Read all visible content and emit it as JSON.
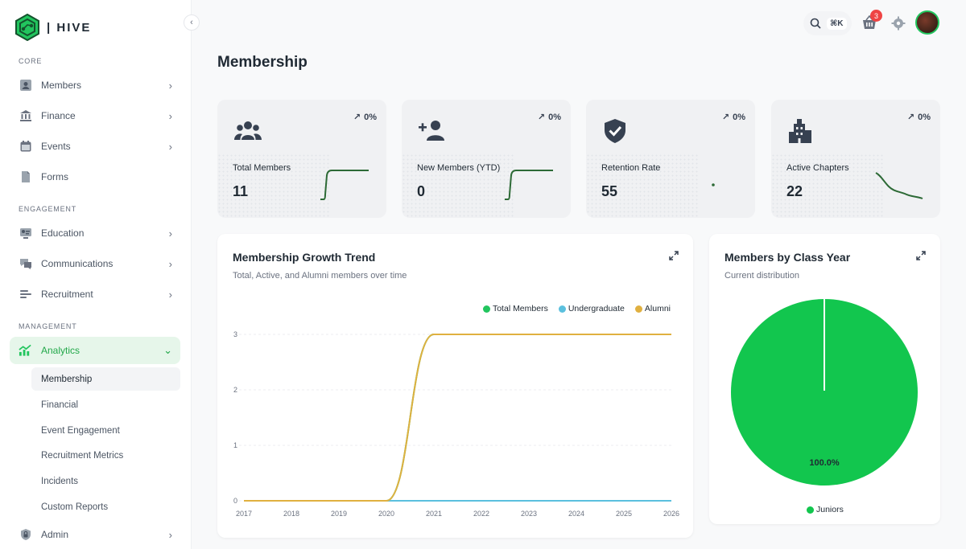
{
  "app": {
    "brand": "| HIVE",
    "accent": "#22c55e"
  },
  "sidebar": {
    "sections": [
      {
        "label": "CORE"
      },
      {
        "label": "ENGAGEMENT"
      },
      {
        "label": "MANAGEMENT"
      }
    ],
    "items": [
      {
        "label": "Members",
        "icon": "member-icon"
      },
      {
        "label": "Finance",
        "icon": "bank-icon"
      },
      {
        "label": "Events",
        "icon": "calendar-icon"
      },
      {
        "label": "Forms",
        "icon": "document-icon"
      },
      {
        "label": "Education",
        "icon": "education-icon"
      },
      {
        "label": "Communications",
        "icon": "chat-icon"
      },
      {
        "label": "Recruitment",
        "icon": "recruitment-icon"
      },
      {
        "label": "Analytics",
        "icon": "analytics-icon"
      },
      {
        "label": "Admin",
        "icon": "lock-icon"
      }
    ],
    "analytics_sub": [
      "Membership",
      "Financial",
      "Event Engagement",
      "Recruitment Metrics",
      "Incidents",
      "Custom Reports"
    ]
  },
  "topbar": {
    "shortcut": "⌘K",
    "cart_badge": "3"
  },
  "page": {
    "title": "Membership"
  },
  "stats": [
    {
      "label": "Total Members",
      "value": "11",
      "trend": "0%",
      "icon": "users-icon",
      "sparkline": "step-up"
    },
    {
      "label": "New Members (YTD)",
      "value": "0",
      "trend": "0%",
      "icon": "add-user-icon",
      "sparkline": "step-up"
    },
    {
      "label": "Retention Rate",
      "value": "55",
      "trend": "0%",
      "icon": "shield-check-icon",
      "sparkline": "point"
    },
    {
      "label": "Active Chapters",
      "value": "22",
      "trend": "0%",
      "icon": "building-icon",
      "sparkline": "decline"
    }
  ],
  "growth": {
    "title": "Membership Growth Trend",
    "subtitle": "Total, Active, and Alumni members over time"
  },
  "classyear": {
    "title": "Members by Class Year",
    "subtitle": "Current distribution"
  },
  "chart_data": [
    {
      "type": "line",
      "x": [
        "2017",
        "2018",
        "2019",
        "2020",
        "2021",
        "2022",
        "2023",
        "2024",
        "2025",
        "2026"
      ],
      "ylim": [
        0,
        3
      ],
      "yticks": [
        "0",
        "1",
        "2",
        "3"
      ],
      "series": [
        {
          "name": "Total Members",
          "color": "#22c55e",
          "values": [
            0,
            0,
            0,
            0,
            3,
            3,
            3,
            3,
            3,
            3
          ]
        },
        {
          "name": "Undergraduate",
          "color": "#5bc0de",
          "values": [
            0,
            0,
            0,
            0,
            0,
            0,
            0,
            0,
            0,
            0
          ]
        },
        {
          "name": "Alumni",
          "color": "#e0b040",
          "values": [
            0,
            0,
            0,
            0,
            3,
            3,
            3,
            3,
            3,
            3
          ]
        }
      ],
      "legend": "top-right",
      "grid": true
    },
    {
      "type": "pie",
      "slices": [
        {
          "name": "Juniors",
          "value": 100.0,
          "label": "100.0%",
          "color": "#12c64e"
        }
      ],
      "legend": "bottom"
    }
  ]
}
